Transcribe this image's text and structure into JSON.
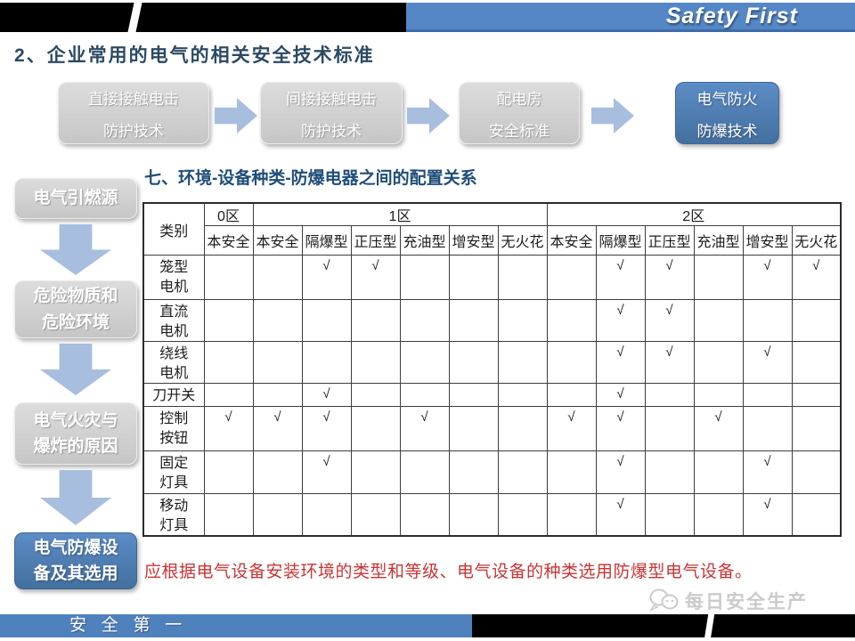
{
  "header": {
    "brand": "Safety First"
  },
  "title": "2、企业常用的电气的相关安全技术标准",
  "flow": {
    "items": [
      {
        "line1": "直接接触电击",
        "line2": "防护技术",
        "highlight": false
      },
      {
        "line1": "间接接触电击",
        "line2": "防护技术",
        "highlight": false
      },
      {
        "line1": "配电房",
        "line2": "安全标准",
        "highlight": false
      },
      {
        "line1": "电气防火",
        "line2": "防爆技术",
        "highlight": true
      }
    ]
  },
  "sidebar": {
    "items": [
      {
        "text": "电气引燃源",
        "highlight": false
      },
      {
        "text": "危险物质和\n危险环境",
        "highlight": false
      },
      {
        "text": "电气火灾与\n爆炸的原因",
        "highlight": false
      },
      {
        "text": "电气防爆设\n备及其选用",
        "highlight": true
      }
    ]
  },
  "section_title": "七、环境-设备种类-防爆电器之间的配置关系",
  "table": {
    "corner_label": "类别",
    "zone_groups": [
      {
        "label": "0区",
        "span": 1
      },
      {
        "label": "1区",
        "span": 6
      },
      {
        "label": "2区",
        "span": 6
      }
    ],
    "sub_headers": [
      "本安全",
      "本安全",
      "隔爆型",
      "正压型",
      "充油型",
      "增安型",
      "无火花",
      "本安全",
      "隔爆型",
      "正压型",
      "充油型",
      "增安型",
      "无火花"
    ],
    "check_symbol": "√",
    "rows": [
      {
        "label": "笼型\n电机",
        "checks": [
          0,
          0,
          1,
          1,
          0,
          0,
          0,
          0,
          1,
          1,
          0,
          1,
          1
        ]
      },
      {
        "label": "直流\n电机",
        "checks": [
          0,
          0,
          0,
          0,
          0,
          0,
          0,
          0,
          1,
          1,
          0,
          0,
          0
        ]
      },
      {
        "label": "绕线\n电机",
        "checks": [
          0,
          0,
          0,
          0,
          0,
          0,
          0,
          0,
          1,
          1,
          0,
          1,
          0
        ]
      },
      {
        "label": "刀开关",
        "checks": [
          0,
          0,
          1,
          0,
          0,
          0,
          0,
          0,
          1,
          0,
          0,
          0,
          0
        ]
      },
      {
        "label": "控制\n按钮",
        "checks": [
          1,
          1,
          1,
          0,
          1,
          0,
          0,
          1,
          1,
          0,
          1,
          0,
          0
        ]
      },
      {
        "label": "固定\n灯具",
        "checks": [
          0,
          0,
          1,
          0,
          0,
          0,
          0,
          0,
          1,
          0,
          0,
          1,
          0
        ]
      },
      {
        "label": "移动\n灯具",
        "checks": [
          0,
          0,
          0,
          0,
          0,
          0,
          0,
          0,
          1,
          0,
          0,
          1,
          0
        ]
      }
    ]
  },
  "note": "应根据电气设备安装环境的类型和等级、电气设备的种类选用防爆型电气设备。",
  "footer": {
    "slogan": "安 全 第 一",
    "watermark": "每日安全生产"
  },
  "colors": {
    "accent_blue": "#4F81BD",
    "header_blue": "#5587C6",
    "box_gray": "#D0D0D0",
    "arrow_blue": "#A8BEDE",
    "title_navy": "#2C4A63",
    "section_blue": "#1F4E79",
    "note_red": "#CC3333",
    "bar_black": "#000000"
  }
}
